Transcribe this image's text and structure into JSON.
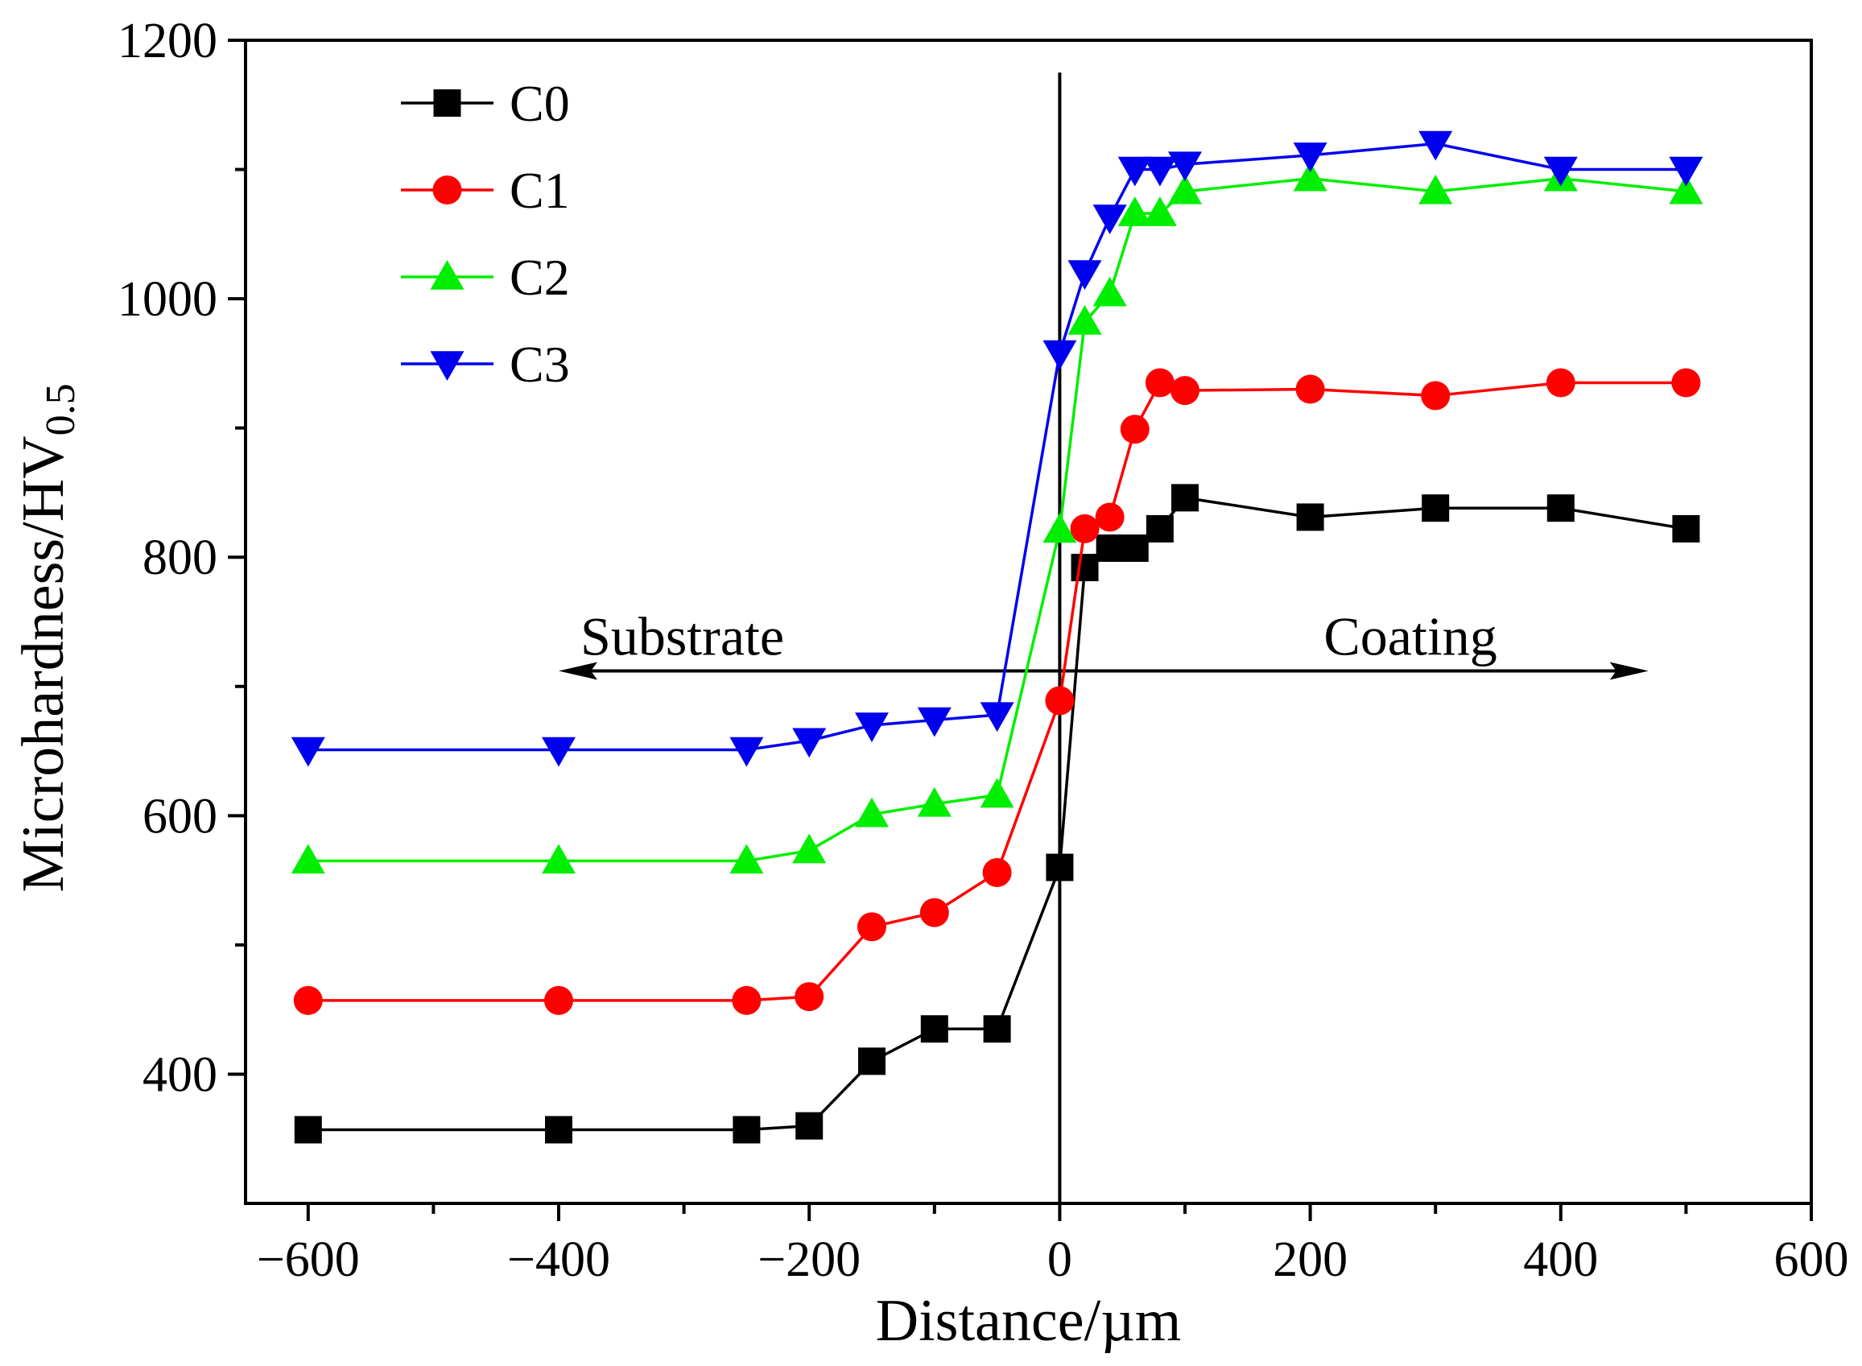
{
  "chart_data": {
    "type": "line",
    "title": "",
    "xlabel": "Distance/µm",
    "ylabel_main": "Microhardness/HV",
    "ylabel_sub": "0.5",
    "xlim": [
      -650,
      600
    ],
    "ylim": [
      300,
      1200
    ],
    "x_ticks": [
      -600,
      -400,
      -200,
      0,
      200,
      400,
      600
    ],
    "x_tick_labels": [
      "−600",
      "−400",
      "−200",
      "0",
      "200",
      "400",
      "600"
    ],
    "x_minor_ticks": [
      -500,
      -300,
      -100,
      100,
      300,
      500
    ],
    "y_ticks": [
      400,
      600,
      800,
      1000,
      1200
    ],
    "y_tick_labels": [
      "400",
      "600",
      "800",
      "1000",
      "1200"
    ],
    "y_minor_ticks": [
      500,
      700,
      900,
      1100
    ],
    "legend_position": "top-left",
    "annotations": {
      "substrate": "Substrate",
      "coating": "Coating",
      "arrow_left_x": -400,
      "arrow_right_x": 470,
      "arrow_y": 712,
      "substrate_x": -220,
      "coating_x": 280,
      "label_y": 740,
      "divider_x": 0,
      "divider_top_y": 1175
    },
    "series": [
      {
        "name": "C0",
        "color": "#000000",
        "marker": "square",
        "x": [
          -600,
          -400,
          -250,
          -200,
          -150,
          -100,
          -50,
          0,
          20,
          40,
          60,
          80,
          100,
          200,
          300,
          400,
          500
        ],
        "y": [
          357,
          357,
          357,
          360,
          410,
          435,
          435,
          560,
          792,
          807,
          807,
          822,
          846,
          831,
          838,
          838,
          822
        ]
      },
      {
        "name": "C1",
        "color": "#ff0000",
        "marker": "circle",
        "x": [
          -600,
          -400,
          -250,
          -200,
          -150,
          -100,
          -50,
          0,
          20,
          40,
          60,
          80,
          100,
          200,
          300,
          400,
          500
        ],
        "y": [
          457,
          457,
          457,
          460,
          514,
          525,
          556,
          689,
          822,
          831,
          899,
          935,
          929,
          930,
          925,
          935,
          935
        ]
      },
      {
        "name": "C2",
        "color": "#00ee00",
        "marker": "triangle-up",
        "x": [
          -600,
          -400,
          -250,
          -200,
          -150,
          -100,
          -50,
          0,
          20,
          40,
          60,
          80,
          100,
          200,
          300,
          400,
          500
        ],
        "y": [
          565,
          565,
          565,
          573,
          601,
          609,
          616,
          821,
          982,
          1004,
          1066,
          1066,
          1083,
          1093,
          1083,
          1093,
          1083
        ]
      },
      {
        "name": "C3",
        "color": "#0000ee",
        "marker": "triangle-down",
        "x": [
          -600,
          -400,
          -250,
          -200,
          -150,
          -100,
          -50,
          0,
          20,
          40,
          60,
          80,
          100,
          200,
          300,
          400,
          500
        ],
        "y": [
          651,
          651,
          651,
          658,
          670,
          674,
          678,
          958,
          1020,
          1063,
          1100,
          1100,
          1104,
          1111,
          1120,
          1100,
          1100
        ]
      }
    ]
  }
}
